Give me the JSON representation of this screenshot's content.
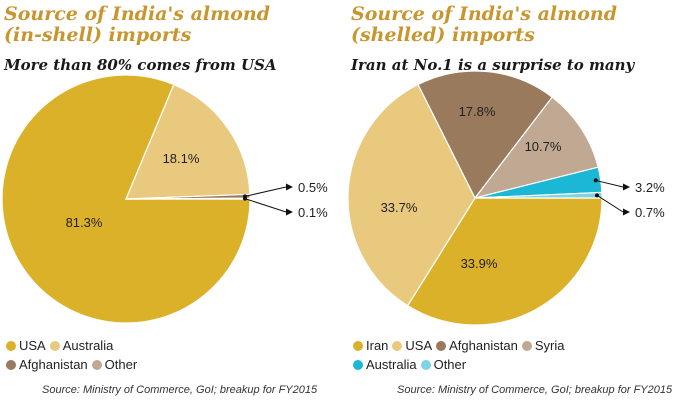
{
  "colors": {
    "title": "#c8952e",
    "usa": "#dcb12a",
    "australia_light": "#e9c97e",
    "afghanistan": "#9a7a5c",
    "syria": "#c0a893",
    "australia_cyan": "#1bb7d4",
    "other": "#7fd3e2"
  },
  "chart_data": [
    {
      "type": "pie",
      "title": "Source of India's almond (in-shell) imports",
      "subtitle": "More than 80% comes from USA",
      "slices": [
        {
          "label": "USA",
          "value": 81.3,
          "display": "81.3%",
          "color": "#dcb12a"
        },
        {
          "label": "Australia",
          "value": 18.1,
          "display": "18.1%",
          "color": "#e9c97e"
        },
        {
          "label": "Afghanistan",
          "value": 0.5,
          "display": "0.5%",
          "color": "#9a7a5c"
        },
        {
          "label": "Other",
          "value": 0.1,
          "display": "0.1%",
          "color": "#c0a893"
        }
      ],
      "legend_rows": [
        [
          "USA",
          "Australia"
        ],
        [
          "Afghanistan",
          "Other"
        ]
      ],
      "source": "Source: Ministry of Commerce, GoI; breakup for FY2015"
    },
    {
      "type": "pie",
      "title": "Source of India's almond (shelled) imports",
      "subtitle": "Iran at No.1 is a surprise to many",
      "slices": [
        {
          "label": "Iran",
          "value": 33.9,
          "display": "33.9%",
          "color": "#dcb12a"
        },
        {
          "label": "USA",
          "value": 33.7,
          "display": "33.7%",
          "color": "#e9c97e"
        },
        {
          "label": "Afghanistan",
          "value": 17.8,
          "display": "17.8%",
          "color": "#9a7a5c"
        },
        {
          "label": "Syria",
          "value": 10.7,
          "display": "10.7%",
          "color": "#c0a893"
        },
        {
          "label": "Australia",
          "value": 3.2,
          "display": "3.2%",
          "color": "#1bb7d4"
        },
        {
          "label": "Other",
          "value": 0.7,
          "display": "0.7%",
          "color": "#7fd3e2"
        }
      ],
      "legend_rows": [
        [
          "Iran",
          "USA",
          "Afghanistan",
          "Syria"
        ],
        [
          "Australia",
          "Other"
        ]
      ],
      "source": "Source: Ministry of Commerce, GoI; breakup for FY2015"
    }
  ]
}
